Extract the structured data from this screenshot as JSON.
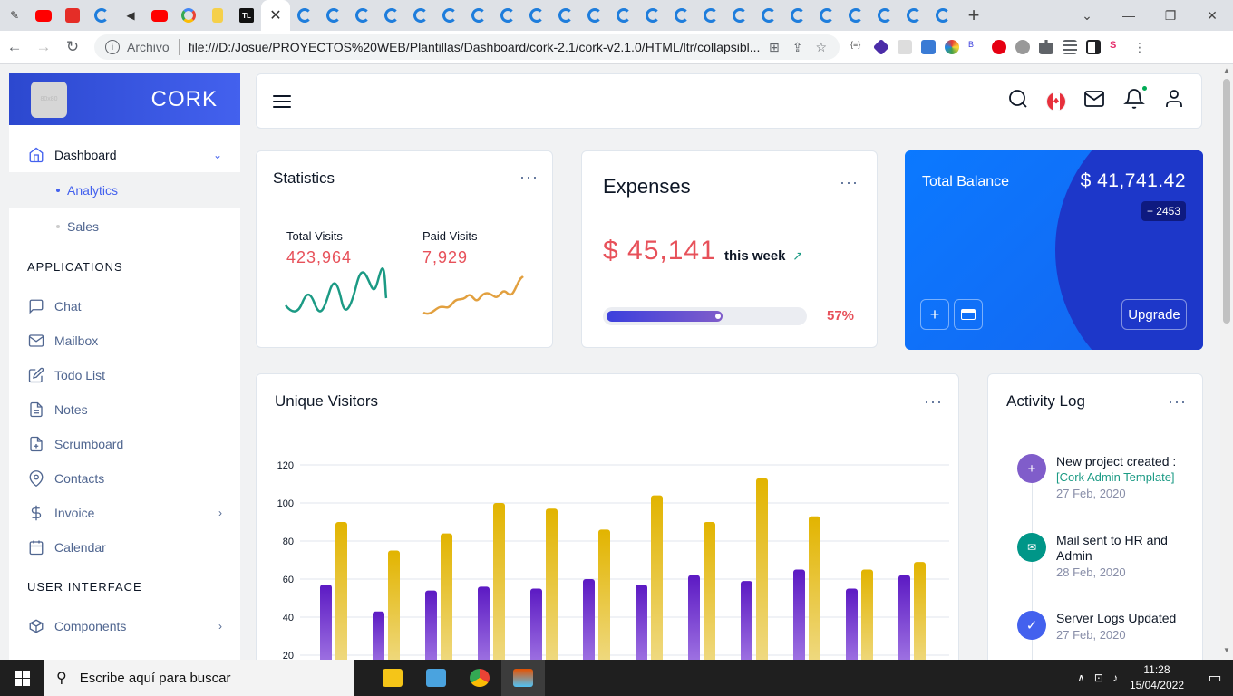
{
  "browser": {
    "address_label": "Archivo",
    "url": "file:///D:/Josue/PROYECTOS%20WEB/Plantillas/Dashboard/cork-2.1/cork-v2.1.0/HTML/ltr/collapsibl...",
    "logo_text": "80x80",
    "tl_text": "TL",
    "new_tab": "+",
    "close_tab": "✕"
  },
  "brand": {
    "name": "CORK"
  },
  "sidebar": {
    "dashboard": "Dashboard",
    "sub": [
      "Analytics",
      "Sales"
    ],
    "applications_heading": "APPLICATIONS",
    "apps": [
      {
        "label": "Chat",
        "icon": "chat-icon"
      },
      {
        "label": "Mailbox",
        "icon": "mail-icon"
      },
      {
        "label": "Todo List",
        "icon": "edit-icon"
      },
      {
        "label": "Notes",
        "icon": "file-icon"
      },
      {
        "label": "Scrumboard",
        "icon": "file-plus-icon"
      },
      {
        "label": "Contacts",
        "icon": "map-pin-icon"
      },
      {
        "label": "Invoice",
        "icon": "dollar-icon"
      },
      {
        "label": "Calendar",
        "icon": "calendar-icon"
      }
    ],
    "ui_heading": "USER INTERFACE",
    "components": "Components"
  },
  "statistics": {
    "title": "Statistics",
    "total_visits_label": "Total Visits",
    "total_visits": "423,964",
    "paid_visits_label": "Paid Visits",
    "paid_visits": "7,929",
    "total_color": "#e7515a",
    "paid_color": "#e2a03f"
  },
  "expenses": {
    "title": "Expenses",
    "amount": "$ 45,141",
    "period": "this week",
    "progress": 0.57,
    "progress_label": "57%"
  },
  "balance": {
    "label": "Total Balance",
    "value": "$ 41,741.42",
    "badge": "+ 2453",
    "upgrade": "Upgrade"
  },
  "visitors": {
    "title": "Unique Visitors"
  },
  "chart_data": {
    "type": "bar",
    "title": "Unique Visitors",
    "categories": [
      "",
      "",
      "",
      "",
      "",
      "",
      "",
      "",
      "",
      "",
      "",
      ""
    ],
    "ylim": [
      20,
      120
    ],
    "yticks": [
      120,
      100,
      80,
      60,
      40,
      20
    ],
    "series": [
      {
        "color": "#5c1ac3",
        "values": [
          57,
          43,
          54,
          56,
          55,
          60,
          57,
          62,
          59,
          65,
          55,
          62
        ]
      },
      {
        "color": "#e2b400",
        "values": [
          90,
          75,
          84,
          100,
          97,
          86,
          104,
          90,
          113,
          93,
          65,
          69
        ]
      }
    ]
  },
  "activity": {
    "title": "Activity Log",
    "items": [
      {
        "text": "New project created :",
        "link": "[Cork Admin Template]",
        "date": "27 Feb, 2020",
        "icon": "plus-icon",
        "color": "#805dca"
      },
      {
        "text": "Mail sent to HR and Admin",
        "link": "",
        "date": "28 Feb, 2020",
        "icon": "mail-icon",
        "color": "#009688"
      },
      {
        "text": "Server Logs Updated",
        "link": "",
        "date": "27 Feb, 2020",
        "icon": "check-icon",
        "color": "#4361ee"
      }
    ]
  },
  "taskbar": {
    "search": "Escribe aquí para buscar",
    "time": "11:28",
    "date": "15/04/2022"
  }
}
